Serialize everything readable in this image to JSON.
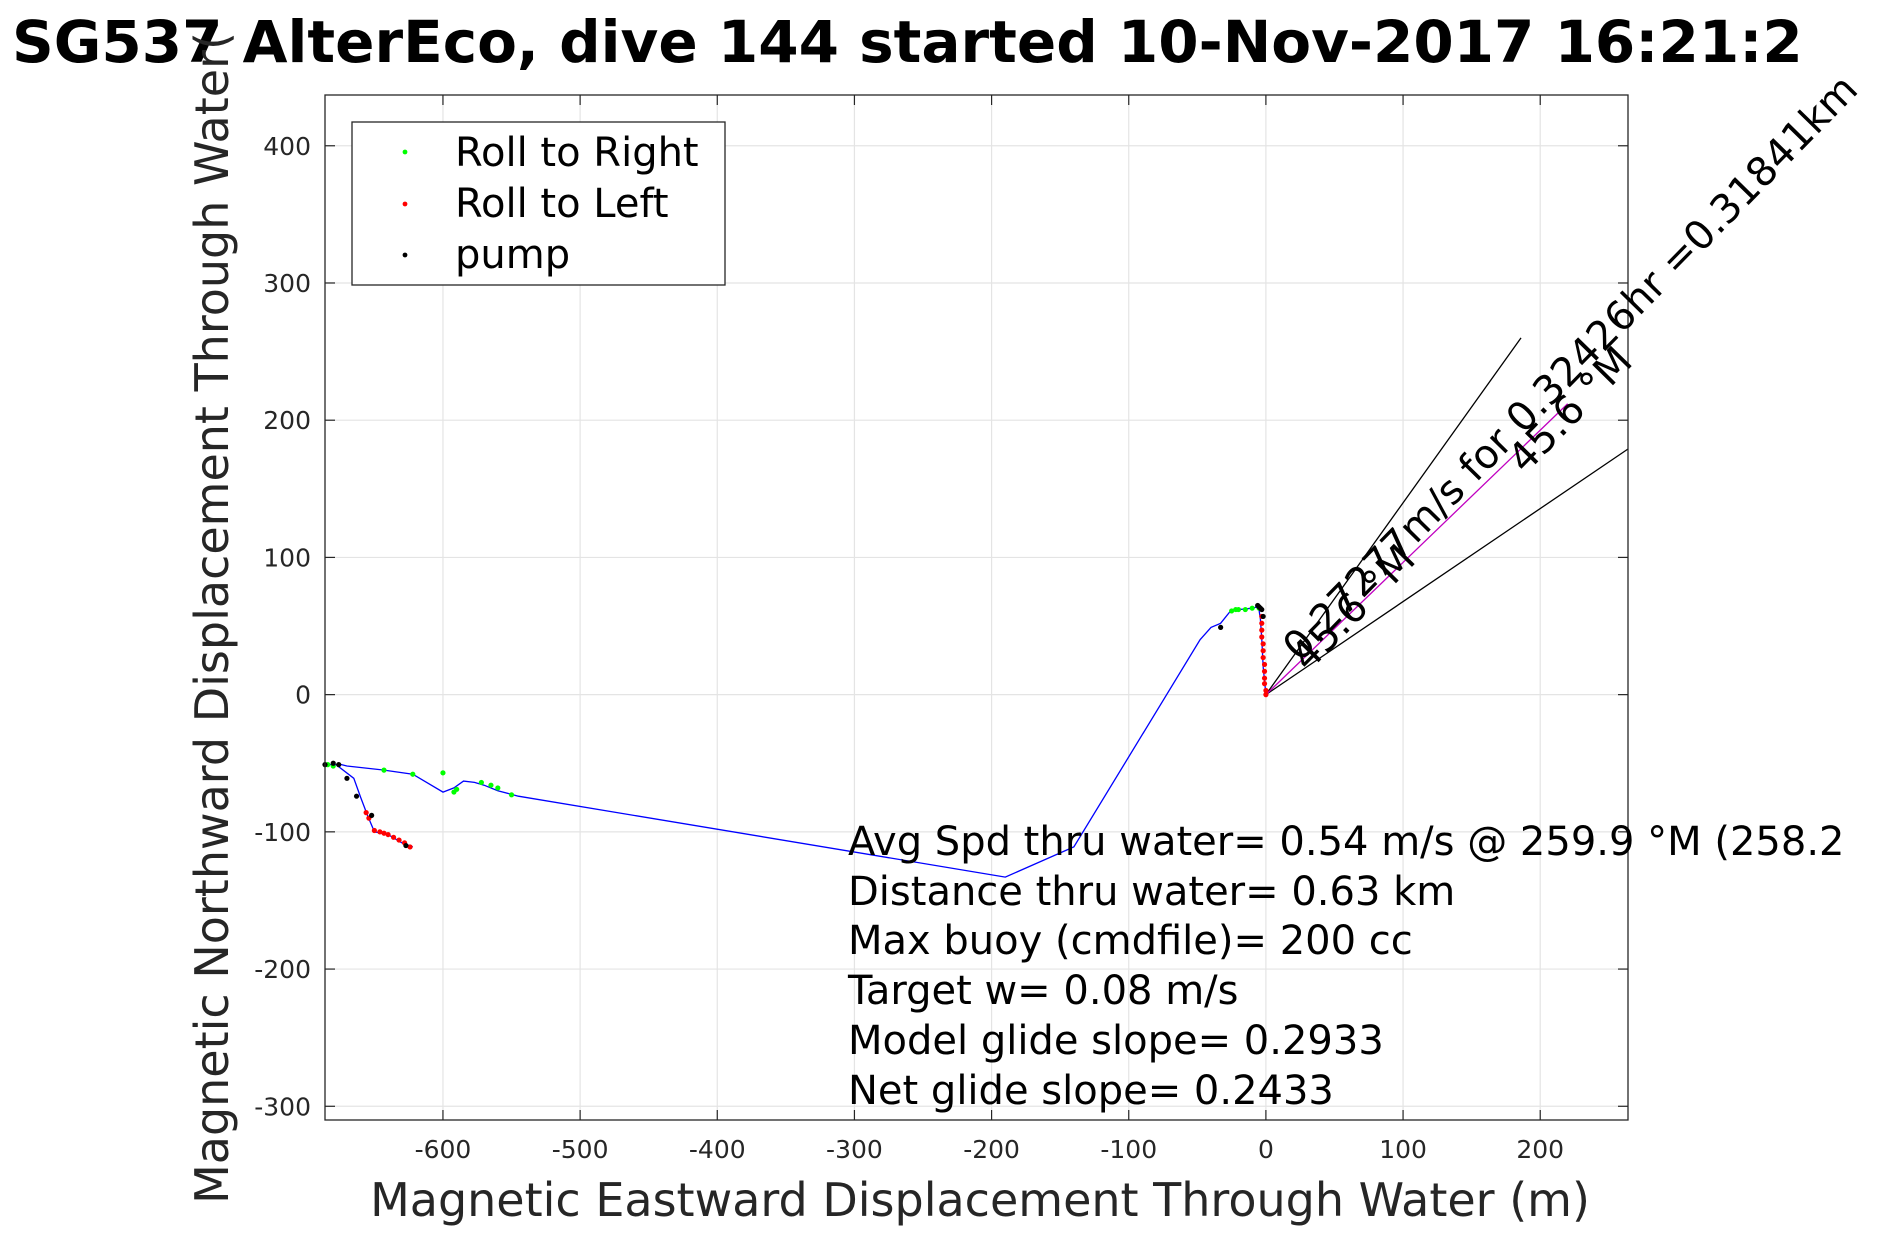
{
  "chart_data": {
    "type": "line",
    "title": "SG537 AlterEco, dive 144 started 10-Nov-2017 16:21:2",
    "xlabel": "Magnetic Eastward Displacement Through Water (m)",
    "ylabel": "Magnetic Northward Displacement Through Water(",
    "xlim": [
      -686,
      264
    ],
    "ylim": [
      -310,
      437
    ],
    "xticks": [
      -600,
      -500,
      -400,
      -300,
      -200,
      -100,
      0,
      100,
      200
    ],
    "yticks": [
      -300,
      -200,
      -100,
      0,
      100,
      200,
      300,
      400
    ],
    "grid": true,
    "legend_position": "top-left",
    "legend": [
      "Roll to Right",
      "Roll to Left",
      "pump"
    ],
    "series": [
      {
        "name": "track",
        "color": "#0000ff",
        "x": [
          0,
          -2,
          -3,
          -4,
          -5,
          -6,
          -10,
          -20,
          -22,
          -25,
          -33,
          -40,
          -48,
          -140,
          -190,
          -545,
          -560,
          -570,
          -577,
          -585,
          -592,
          -600,
          -622,
          -643,
          -670,
          -674,
          -678,
          -686
        ],
        "y": [
          0,
          20,
          40,
          55,
          62,
          64,
          63,
          62,
          61,
          62,
          52,
          49,
          40,
          -111,
          -133,
          -74,
          -70,
          -66,
          -64,
          -63,
          -68,
          -71,
          -58,
          -55,
          -52,
          -51,
          -51,
          -51
        ]
      },
      {
        "name": "track-2",
        "color": "#0000ff",
        "x": [
          -678,
          -665,
          -660,
          -655,
          -650,
          -640,
          -635,
          -630,
          -622
        ],
        "y": [
          -51,
          -61,
          -75,
          -88,
          -100,
          -102,
          -105,
          -108,
          -111
        ]
      }
    ],
    "markers": {
      "roll_right": {
        "color": "#00ff00",
        "x": [
          -5,
          -10,
          -15,
          -20,
          -22,
          -25,
          -550,
          -560,
          -565,
          -572,
          -590,
          -592,
          -600,
          -622,
          -643,
          -680,
          -684
        ],
        "y": [
          63,
          63,
          62,
          62,
          62,
          61,
          -73,
          -68,
          -66,
          -64,
          -69,
          -71,
          -57,
          -58,
          -55,
          -52,
          -51
        ]
      },
      "roll_left": {
        "color": "#ff0000",
        "x": [
          0,
          0,
          -1,
          -1,
          -1,
          -1,
          -2,
          -2,
          -2,
          -3,
          -3,
          -3,
          -3,
          -656,
          -654,
          -650,
          -646,
          -643,
          -640,
          -636,
          -632,
          -628,
          -624
        ],
        "y": [
          0,
          3,
          8,
          12,
          17,
          22,
          27,
          32,
          37,
          42,
          47,
          52,
          57,
          -86,
          -90,
          -99,
          -100,
          -101,
          -102,
          -104,
          -106,
          -108,
          -111
        ]
      },
      "pump": {
        "color": "#000000",
        "x": [
          -2,
          -3,
          -4,
          -5,
          -6,
          -33,
          -663,
          -670,
          -676,
          -680,
          -686,
          -652,
          -627
        ],
        "y": [
          57,
          62,
          63,
          64,
          65,
          49,
          -74,
          -61,
          -51,
          -50,
          -51,
          -88,
          -110
        ]
      }
    },
    "reference_lines": [
      {
        "x": [
          0,
          186
        ],
        "y": [
          0,
          260
        ],
        "color": "#000000"
      },
      {
        "x": [
          0,
          264
        ],
        "y": [
          0,
          179
        ],
        "color": "#000000"
      },
      {
        "x": [
          0,
          220
        ],
        "y": [
          0,
          212
        ],
        "color": "#c000c0"
      }
    ],
    "annotations": {
      "rotated_upper": "0.27277m/s for 0.32426hr =0.31841km",
      "rotated_lower_1": "45.6 °M",
      "rotated_lower_2": "45.6 °M",
      "stats": [
        "Avg Spd thru water=  0.54 m/s @ 259.9 °M (258.2",
        "Distance thru water=  0.63 km",
        "Max buoy (cmdfile)= 200 cc",
        "Target w= 0.08 m/s",
        "Model glide slope= 0.2933",
        "Net glide slope= 0.2433"
      ]
    }
  }
}
